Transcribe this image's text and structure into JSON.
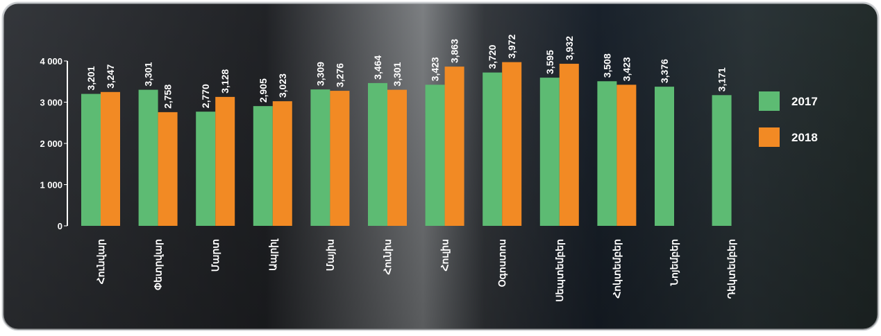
{
  "chart_data": {
    "type": "bar",
    "categories": [
      "Հունվար",
      "Փետրվար",
      "Մարտ",
      "Ապրիլ",
      "Մայիս",
      "Հունիս",
      "Հուլիս",
      "Օգոստոս",
      "Սեպտեմբեր",
      "Հոկտեմբեր",
      "Նոյեմբեր",
      "Դեկտեմբեր"
    ],
    "series": [
      {
        "name": "2017",
        "color": "#5dbb73",
        "values": [
          3201,
          3301,
          2770,
          2905,
          3309,
          3464,
          3423,
          3720,
          3595,
          3508,
          3376,
          3171
        ],
        "value_labels": [
          "3,201",
          "3,301",
          "2,770",
          "2,905",
          "3,309",
          "3,464",
          "3,423",
          "3,720",
          "3,595",
          "3,508",
          "3,376",
          "3,171"
        ]
      },
      {
        "name": "2018",
        "color": "#f28a24",
        "values": [
          3247,
          2758,
          3128,
          3023,
          3276,
          3301,
          3863,
          3972,
          3932,
          3423,
          null,
          null
        ],
        "value_labels": [
          "3,247",
          "2,758",
          "3,128",
          "3,023",
          "3,276",
          "3,301",
          "3,863",
          "3,972",
          "3,932",
          "3,423",
          null,
          null
        ]
      }
    ],
    "ylim": [
      0,
      4000
    ],
    "yticks": [
      0,
      {
        "value": 1000,
        "label": "1 000"
      },
      {
        "value": 2000,
        "label": "2 000"
      },
      {
        "value": 3000,
        "label": "3 000"
      },
      {
        "value": 4000,
        "label": "4 000"
      }
    ],
    "legend": "right"
  }
}
